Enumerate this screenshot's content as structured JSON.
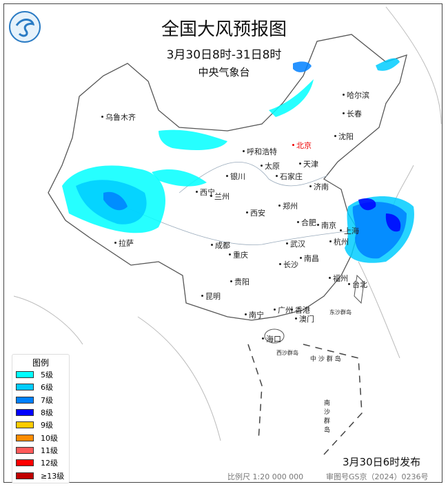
{
  "header": {
    "title": "全国大风预报图",
    "period": "3月30日8时-31日8时",
    "issuer": "中央气象台",
    "logo": "cma-logo"
  },
  "cities": [
    {
      "name": "乌鲁木齐"
    },
    {
      "name": "哈尔滨"
    },
    {
      "name": "长春"
    },
    {
      "name": "沈阳"
    },
    {
      "name": "北京",
      "capital": true
    },
    {
      "name": "呼和浩特"
    },
    {
      "name": "天津"
    },
    {
      "name": "太原"
    },
    {
      "name": "石家庄"
    },
    {
      "name": "银川"
    },
    {
      "name": "西宁"
    },
    {
      "name": "兰州"
    },
    {
      "name": "济南"
    },
    {
      "name": "郑州"
    },
    {
      "name": "西安"
    },
    {
      "name": "合肥"
    },
    {
      "name": "南京"
    },
    {
      "name": "上海"
    },
    {
      "name": "拉萨"
    },
    {
      "name": "成都"
    },
    {
      "name": "武汉"
    },
    {
      "name": "杭州"
    },
    {
      "name": "重庆"
    },
    {
      "name": "南昌"
    },
    {
      "name": "长沙"
    },
    {
      "name": "福州"
    },
    {
      "name": "台北"
    },
    {
      "name": "贵阳"
    },
    {
      "name": "昆明"
    },
    {
      "name": "广州"
    },
    {
      "name": "香港"
    },
    {
      "name": "澳门"
    },
    {
      "name": "南宁"
    },
    {
      "name": "海口"
    }
  ],
  "islands": {
    "dongsha": "东沙群岛",
    "xisha": "西沙群岛",
    "zhongsha": "中 沙 群 岛",
    "nansha": "南 沙 群 岛"
  },
  "legend": {
    "title": "图例",
    "items": [
      {
        "label": "5级",
        "color": "#00ffff"
      },
      {
        "label": "6级",
        "color": "#00ccff"
      },
      {
        "label": "7级",
        "color": "#0080ff"
      },
      {
        "label": "8级",
        "color": "#0000ff"
      },
      {
        "label": "9级",
        "color": "#ffcc00"
      },
      {
        "label": "10级",
        "color": "#ff8c00"
      },
      {
        "label": "11级",
        "color": "#ff5a5a"
      },
      {
        "label": "12级",
        "color": "#ff0000"
      },
      {
        "label": "≥13级",
        "color": "#c00000"
      }
    ]
  },
  "footer": {
    "issued": "3月30日6时发布",
    "scale": "比例尺 1:20 000 000",
    "approval": "审图号GS京（2024）0236号"
  }
}
